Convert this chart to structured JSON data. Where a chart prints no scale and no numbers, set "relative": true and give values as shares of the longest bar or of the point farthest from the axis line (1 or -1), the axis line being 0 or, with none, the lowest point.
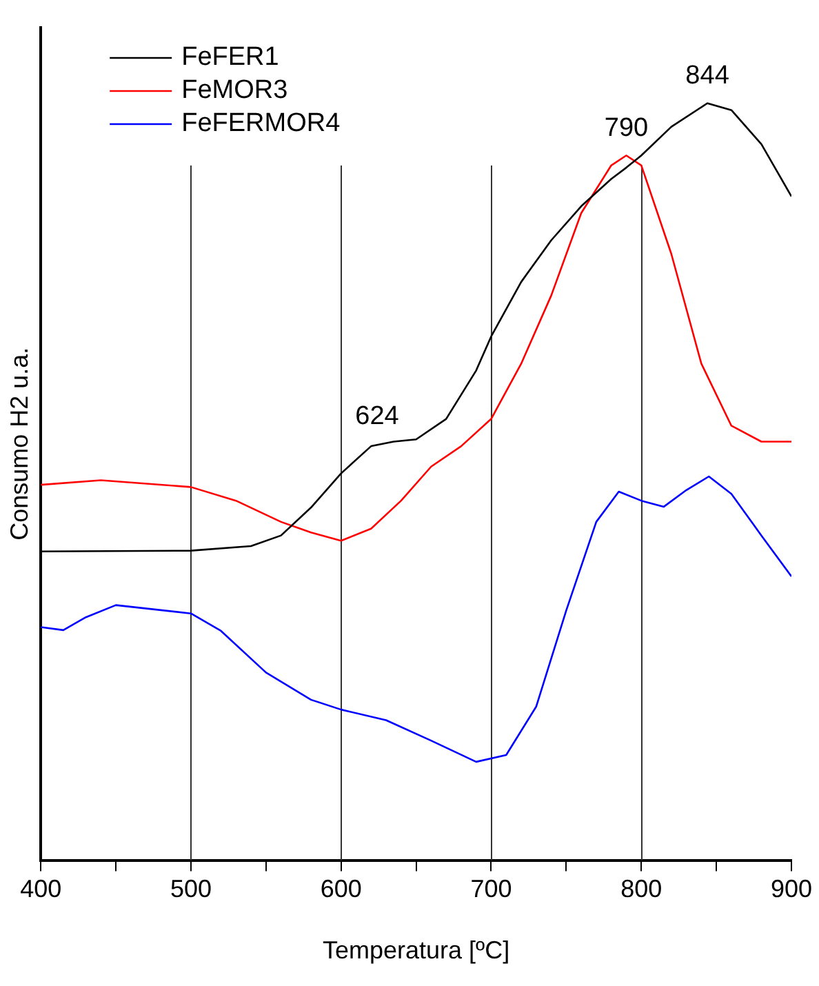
{
  "chart_data": {
    "type": "line",
    "xlabel": "Temperatura [ºC]",
    "ylabel": "Consumo H2 u.a.",
    "relative": true,
    "xlim": [
      400,
      900
    ],
    "xticks": [
      400,
      {
        "value": 450,
        "label": null
      },
      500,
      {
        "value": 550,
        "label": null
      },
      600,
      {
        "value": 650,
        "label": null
      },
      700,
      {
        "value": 750,
        "label": null
      },
      800,
      {
        "value": 850,
        "label": null
      },
      900
    ],
    "grid": "x",
    "legend": "top left",
    "marker": "none",
    "line_style": "solid",
    "series": [
      {
        "name": "FeFER1",
        "color": "#000000",
        "x": [
          400,
          500,
          540,
          560,
          580,
          600,
          620,
          635,
          650,
          670,
          690,
          700,
          720,
          740,
          760,
          780,
          790,
          800,
          820,
          844,
          860,
          880,
          900
        ],
        "values": [
          0.408,
          0.409,
          0.415,
          0.429,
          0.466,
          0.511,
          0.547,
          0.553,
          0.556,
          0.583,
          0.647,
          0.692,
          0.764,
          0.819,
          0.864,
          0.9,
          0.915,
          0.931,
          0.969,
          1,
          0.991,
          0.946,
          0.877
        ]
      },
      {
        "name": "FeMOR3",
        "color": "#ff0000",
        "x": [
          400,
          440,
          500,
          530,
          560,
          580,
          600,
          620,
          640,
          660,
          680,
          700,
          720,
          740,
          760,
          780,
          790,
          800,
          820,
          840,
          860,
          880,
          900
        ],
        "values": [
          0.496,
          0.502,
          0.493,
          0.475,
          0.447,
          0.433,
          0.422,
          0.438,
          0.475,
          0.52,
          0.547,
          0.583,
          0.656,
          0.746,
          0.855,
          0.918,
          0.931,
          0.918,
          0.801,
          0.656,
          0.574,
          0.553,
          0.553
        ]
      },
      {
        "name": "FeFERMOR4",
        "color": "#0000ff",
        "x": [
          400,
          415,
          430,
          450,
          500,
          520,
          550,
          580,
          600,
          630,
          660,
          690,
          710,
          730,
          750,
          770,
          785,
          800,
          815,
          830,
          845,
          860,
          880,
          900
        ],
        "values": [
          0.308,
          0.304,
          0.321,
          0.337,
          0.326,
          0.303,
          0.248,
          0.212,
          0.199,
          0.185,
          0.158,
          0.13,
          0.139,
          0.203,
          0.33,
          0.447,
          0.487,
          0.475,
          0.467,
          0.489,
          0.507,
          0.484,
          0.429,
          0.375
        ]
      }
    ],
    "annotations": [
      {
        "text": "624",
        "x": 624,
        "y": 0.55
      },
      {
        "text": "790",
        "x": 790,
        "y": 0.931
      },
      {
        "text": "844",
        "x": 844,
        "y": 1
      }
    ]
  }
}
